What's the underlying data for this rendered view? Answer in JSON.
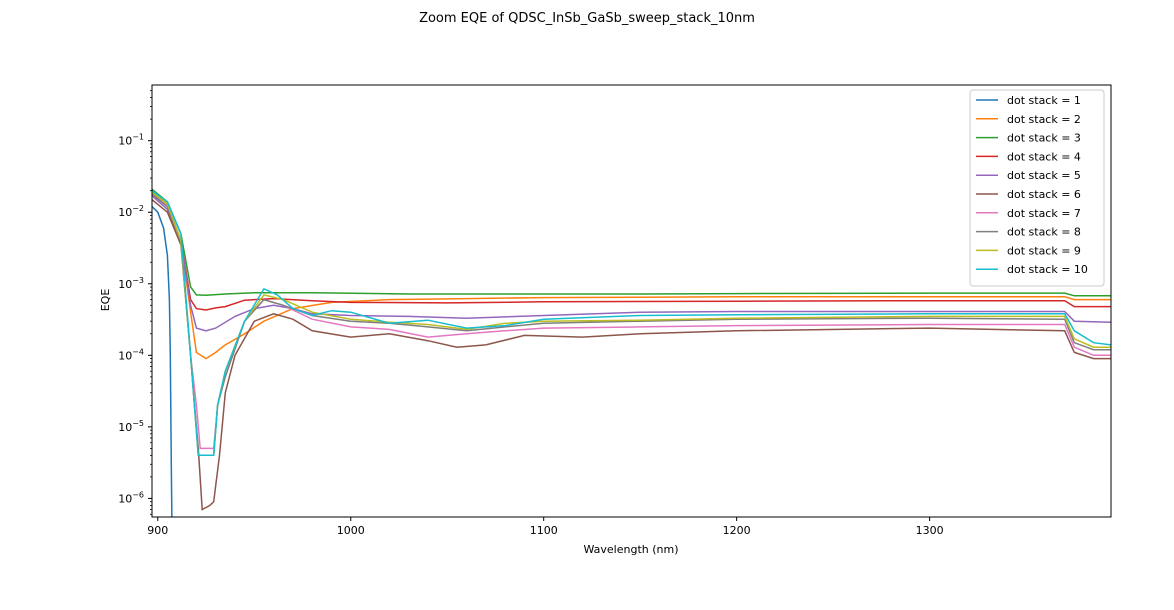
{
  "chart_data": {
    "type": "line",
    "title": "Zoom EQE of QDSC_InSb_GaSb_sweep_stack_10nm",
    "xlabel": "Wavelength (nm)",
    "ylabel": "EQE",
    "xlim": [
      897,
      1394
    ],
    "ylim": [
      5.5e-07,
      0.6
    ],
    "yscale": "log",
    "grid": false,
    "legend_position": "top-right",
    "x_ticks": [
      {
        "value": 900,
        "label": "900"
      },
      {
        "value": 1000,
        "label": "1000"
      },
      {
        "value": 1100,
        "label": "1100"
      },
      {
        "value": 1200,
        "label": "1200"
      },
      {
        "value": 1300,
        "label": "1300"
      }
    ],
    "y_ticks": [
      {
        "value": 1e-06,
        "base": "10",
        "exp": "−6"
      },
      {
        "value": 1e-05,
        "base": "10",
        "exp": "−5"
      },
      {
        "value": 0.0001,
        "base": "10",
        "exp": "−4"
      },
      {
        "value": 0.001,
        "base": "10",
        "exp": "−3"
      },
      {
        "value": 0.01,
        "base": "10",
        "exp": "−2"
      },
      {
        "value": 0.1,
        "base": "10",
        "exp": "−1"
      }
    ],
    "series": [
      {
        "name": "dot stack = 1",
        "color": "#1f77b4",
        "points": [
          [
            897,
            0.012
          ],
          [
            900,
            0.01
          ],
          [
            903,
            0.006
          ],
          [
            905,
            0.0025
          ],
          [
            906,
            0.0006
          ],
          [
            906.5,
            0.0001
          ],
          [
            907,
            3e-06
          ],
          [
            907.3,
            5e-07
          ]
        ]
      },
      {
        "name": "dot stack = 2",
        "color": "#ff7f0e",
        "points": [
          [
            897,
            0.02
          ],
          [
            905,
            0.013
          ],
          [
            912,
            0.004
          ],
          [
            917,
            0.0004
          ],
          [
            920,
            0.00011
          ],
          [
            925,
            9e-05
          ],
          [
            930,
            0.00011
          ],
          [
            935,
            0.00014
          ],
          [
            945,
            0.0002
          ],
          [
            955,
            0.0003
          ],
          [
            970,
            0.00045
          ],
          [
            990,
            0.00055
          ],
          [
            1020,
            0.0006
          ],
          [
            1060,
            0.00062
          ],
          [
            1100,
            0.00064
          ],
          [
            1150,
            0.00065
          ],
          [
            1200,
            0.00066
          ],
          [
            1300,
            0.00066
          ],
          [
            1370,
            0.00066
          ],
          [
            1375,
            0.0006
          ],
          [
            1394,
            0.0006
          ]
        ]
      },
      {
        "name": "dot stack = 3",
        "color": "#2ca02c",
        "points": [
          [
            897,
            0.021
          ],
          [
            905,
            0.014
          ],
          [
            912,
            0.005
          ],
          [
            917,
            0.0009
          ],
          [
            920,
            0.0007
          ],
          [
            925,
            0.00069
          ],
          [
            935,
            0.00072
          ],
          [
            950,
            0.00075
          ],
          [
            980,
            0.00075
          ],
          [
            1030,
            0.00072
          ],
          [
            1100,
            0.00072
          ],
          [
            1150,
            0.00072
          ],
          [
            1200,
            0.00073
          ],
          [
            1300,
            0.00074
          ],
          [
            1370,
            0.00074
          ],
          [
            1375,
            0.00068
          ],
          [
            1394,
            0.00068
          ]
        ]
      },
      {
        "name": "dot stack = 4",
        "color": "#d62728",
        "points": [
          [
            897,
            0.018
          ],
          [
            905,
            0.012
          ],
          [
            912,
            0.004
          ],
          [
            917,
            0.0006
          ],
          [
            920,
            0.00045
          ],
          [
            925,
            0.00043
          ],
          [
            930,
            0.00046
          ],
          [
            935,
            0.00048
          ],
          [
            945,
            0.00059
          ],
          [
            960,
            0.00062
          ],
          [
            980,
            0.00058
          ],
          [
            1000,
            0.00055
          ],
          [
            1050,
            0.00054
          ],
          [
            1100,
            0.00056
          ],
          [
            1200,
            0.00057
          ],
          [
            1300,
            0.00058
          ],
          [
            1370,
            0.00058
          ],
          [
            1375,
            0.00048
          ],
          [
            1394,
            0.00048
          ]
        ]
      },
      {
        "name": "dot stack = 5",
        "color": "#9467bd",
        "points": [
          [
            897,
            0.017
          ],
          [
            905,
            0.011
          ],
          [
            912,
            0.004
          ],
          [
            917,
            0.0005
          ],
          [
            920,
            0.00024
          ],
          [
            925,
            0.00022
          ],
          [
            930,
            0.00024
          ],
          [
            940,
            0.00035
          ],
          [
            950,
            0.00045
          ],
          [
            960,
            0.0005
          ],
          [
            970,
            0.00045
          ],
          [
            980,
            0.00038
          ],
          [
            1000,
            0.00036
          ],
          [
            1030,
            0.00035
          ],
          [
            1060,
            0.00033
          ],
          [
            1100,
            0.00036
          ],
          [
            1150,
            0.0004
          ],
          [
            1200,
            0.00041
          ],
          [
            1300,
            0.00041
          ],
          [
            1370,
            0.00041
          ],
          [
            1375,
            0.0003
          ],
          [
            1394,
            0.00029
          ]
        ]
      },
      {
        "name": "dot stack = 6",
        "color": "#8c564b",
        "points": [
          [
            897,
            0.015
          ],
          [
            905,
            0.01
          ],
          [
            912,
            0.0035
          ],
          [
            917,
            0.0001
          ],
          [
            919,
            2e-05
          ],
          [
            921,
            5e-06
          ],
          [
            923,
            7e-07
          ],
          [
            927,
            8e-07
          ],
          [
            929,
            9e-07
          ],
          [
            932,
            4e-06
          ],
          [
            935,
            3e-05
          ],
          [
            940,
            0.0001
          ],
          [
            950,
            0.0003
          ],
          [
            960,
            0.00038
          ],
          [
            970,
            0.00032
          ],
          [
            980,
            0.00022
          ],
          [
            1000,
            0.00018
          ],
          [
            1020,
            0.0002
          ],
          [
            1040,
            0.00016
          ],
          [
            1055,
            0.00013
          ],
          [
            1070,
            0.00014
          ],
          [
            1090,
            0.00019
          ],
          [
            1120,
            0.00018
          ],
          [
            1150,
            0.0002
          ],
          [
            1200,
            0.00022
          ],
          [
            1300,
            0.00024
          ],
          [
            1370,
            0.00022
          ],
          [
            1375,
            0.00011
          ],
          [
            1385,
            9e-05
          ],
          [
            1394,
            9e-05
          ]
        ]
      },
      {
        "name": "dot stack = 7",
        "color": "#e377c2",
        "points": [
          [
            897,
            0.019
          ],
          [
            905,
            0.013
          ],
          [
            912,
            0.004
          ],
          [
            917,
            0.0001
          ],
          [
            920,
            2e-05
          ],
          [
            922,
            5e-06
          ],
          [
            929,
            5e-06
          ],
          [
            931,
            2e-05
          ],
          [
            935,
            6e-05
          ],
          [
            945,
            0.0003
          ],
          [
            955,
            0.0006
          ],
          [
            965,
            0.0005
          ],
          [
            980,
            0.00032
          ],
          [
            1000,
            0.00025
          ],
          [
            1020,
            0.00023
          ],
          [
            1040,
            0.00018
          ],
          [
            1060,
            0.0002
          ],
          [
            1080,
            0.00022
          ],
          [
            1100,
            0.00024
          ],
          [
            1150,
            0.00025
          ],
          [
            1200,
            0.00026
          ],
          [
            1300,
            0.00027
          ],
          [
            1370,
            0.00027
          ],
          [
            1375,
            0.00013
          ],
          [
            1385,
            0.0001
          ],
          [
            1394,
            0.0001
          ]
        ]
      },
      {
        "name": "dot stack = 8",
        "color": "#7f7f7f",
        "points": [
          [
            897,
            0.018
          ],
          [
            905,
            0.012
          ],
          [
            912,
            0.004
          ],
          [
            917,
            0.0001
          ],
          [
            921,
            4e-06
          ],
          [
            929,
            4e-06
          ],
          [
            931,
            2e-05
          ],
          [
            935,
            5e-05
          ],
          [
            945,
            0.0003
          ],
          [
            955,
            0.0006
          ],
          [
            965,
            0.0005
          ],
          [
            980,
            0.00036
          ],
          [
            1000,
            0.0003
          ],
          [
            1020,
            0.00028
          ],
          [
            1040,
            0.00025
          ],
          [
            1060,
            0.00022
          ],
          [
            1080,
            0.00025
          ],
          [
            1100,
            0.00028
          ],
          [
            1150,
            0.0003
          ],
          [
            1200,
            0.00032
          ],
          [
            1300,
            0.00033
          ],
          [
            1370,
            0.00032
          ],
          [
            1375,
            0.00015
          ],
          [
            1385,
            0.00012
          ],
          [
            1394,
            0.00012
          ]
        ]
      },
      {
        "name": "dot stack = 9",
        "color": "#bcbd22",
        "points": [
          [
            897,
            0.019
          ],
          [
            905,
            0.013
          ],
          [
            912,
            0.004
          ],
          [
            917,
            0.0001
          ],
          [
            921,
            4e-06
          ],
          [
            929,
            4e-06
          ],
          [
            931,
            2e-05
          ],
          [
            935,
            6e-05
          ],
          [
            945,
            0.0003
          ],
          [
            955,
            0.0007
          ],
          [
            965,
            0.0006
          ],
          [
            980,
            0.0004
          ],
          [
            1000,
            0.00032
          ],
          [
            1020,
            0.00029
          ],
          [
            1040,
            0.00027
          ],
          [
            1060,
            0.00023
          ],
          [
            1080,
            0.00028
          ],
          [
            1100,
            0.0003
          ],
          [
            1150,
            0.00031
          ],
          [
            1200,
            0.00033
          ],
          [
            1300,
            0.00035
          ],
          [
            1370,
            0.00035
          ],
          [
            1375,
            0.00017
          ],
          [
            1385,
            0.00013
          ],
          [
            1394,
            0.00013
          ]
        ]
      },
      {
        "name": "dot stack = 10",
        "color": "#17becf",
        "points": [
          [
            897,
            0.02
          ],
          [
            905,
            0.014
          ],
          [
            912,
            0.005
          ],
          [
            917,
            0.0001
          ],
          [
            921,
            4e-06
          ],
          [
            929,
            4e-06
          ],
          [
            931,
            2e-05
          ],
          [
            935,
            6e-05
          ],
          [
            945,
            0.0003
          ],
          [
            955,
            0.00085
          ],
          [
            962,
            0.0007
          ],
          [
            970,
            0.00045
          ],
          [
            980,
            0.00036
          ],
          [
            990,
            0.00042
          ],
          [
            1000,
            0.0004
          ],
          [
            1020,
            0.00028
          ],
          [
            1040,
            0.00031
          ],
          [
            1060,
            0.00024
          ],
          [
            1080,
            0.00026
          ],
          [
            1100,
            0.00032
          ],
          [
            1150,
            0.00036
          ],
          [
            1200,
            0.00037
          ],
          [
            1300,
            0.00038
          ],
          [
            1370,
            0.00038
          ],
          [
            1375,
            0.00022
          ],
          [
            1385,
            0.00015
          ],
          [
            1394,
            0.00014
          ]
        ]
      }
    ]
  }
}
